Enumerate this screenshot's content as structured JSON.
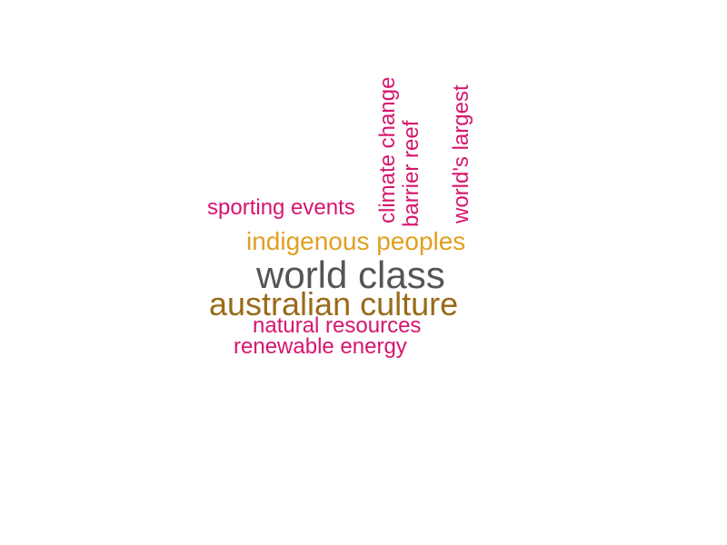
{
  "word_cloud": {
    "words": [
      {
        "text": "world class",
        "color": "#555555",
        "weight": 1
      },
      {
        "text": "australian culture",
        "color": "#9a6a1a",
        "weight": 2
      },
      {
        "text": "indigenous peoples",
        "color": "#e0a020",
        "weight": 3
      },
      {
        "text": "sporting events",
        "color": "#d6156e",
        "weight": 4
      },
      {
        "text": "climate change",
        "color": "#d6156e",
        "weight": 4
      },
      {
        "text": "barrier reef",
        "color": "#d6156e",
        "weight": 4
      },
      {
        "text": "world's largest",
        "color": "#d6156e",
        "weight": 4
      },
      {
        "text": "natural resources",
        "color": "#d6156e",
        "weight": 4
      },
      {
        "text": "renewable energy",
        "color": "#d6156e",
        "weight": 4
      }
    ]
  }
}
